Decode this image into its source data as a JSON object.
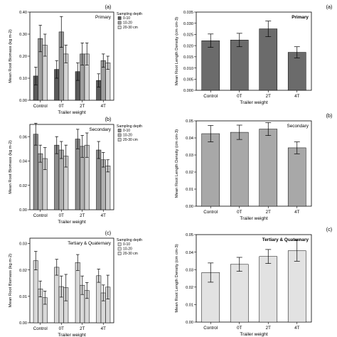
{
  "chart_data": [
    {
      "type": "bar",
      "panel_label": "(a)",
      "title": "Primary",
      "xlabel": "Trailer weight",
      "ylabel": "Mean Root Biomass (kg m-2)",
      "categories": [
        "Control",
        "0T",
        "2T",
        "4T"
      ],
      "ylim": [
        0,
        0.4
      ],
      "yticks": [
        "0.00",
        "0.10",
        "0.20",
        "0.30",
        "0.40"
      ],
      "ytick_values": [
        0,
        0.1,
        0.2,
        0.3,
        0.4
      ],
      "legend": {
        "title": "Sampling depth",
        "entries": [
          "0-10",
          "10-20",
          "20-30 cm"
        ],
        "placement": "top-right"
      },
      "series": [
        {
          "name": "0-10",
          "color": "#5a5a5a",
          "values": [
            0.11,
            0.14,
            0.13,
            0.09
          ],
          "errors": [
            0.04,
            0.04,
            0.04,
            0.03
          ]
        },
        {
          "name": "10-20",
          "color": "#9e9e9e",
          "values": [
            0.28,
            0.31,
            0.21,
            0.18
          ],
          "errors": [
            0.06,
            0.07,
            0.05,
            0.03
          ]
        },
        {
          "name": "20-30 cm",
          "color": "#d4d4d4",
          "values": [
            0.25,
            0.21,
            0.21,
            0.17
          ],
          "errors": [
            0.05,
            0.04,
            0.05,
            0.03
          ]
        }
      ]
    },
    {
      "type": "bar",
      "panel_label": "(b)",
      "title": "Secondary",
      "xlabel": "Trailer weight",
      "ylabel": "Mean Root Biomass (kg m-2)",
      "categories": [
        "Control",
        "0T",
        "2T",
        "4T"
      ],
      "ylim": [
        0,
        0.07
      ],
      "yticks": [
        "0.00",
        "0.02",
        "0.04",
        "0.06"
      ],
      "ytick_values": [
        0,
        0.02,
        0.04,
        0.06
      ],
      "legend": {
        "title": "Sampling depth",
        "entries": [
          "0-10",
          "10-20",
          "20-30 cm"
        ],
        "placement": "top-right"
      },
      "series": [
        {
          "name": "0-10",
          "color": "#8c8c8c",
          "values": [
            0.062,
            0.053,
            0.058,
            0.049
          ],
          "errors": [
            0.009,
            0.007,
            0.008,
            0.007
          ]
        },
        {
          "name": "10-20",
          "color": "#b0b0b0",
          "values": [
            0.046,
            0.049,
            0.052,
            0.041
          ],
          "errors": [
            0.007,
            0.007,
            0.009,
            0.006
          ]
        },
        {
          "name": "20-30 cm",
          "color": "#cfcfcf",
          "values": [
            0.042,
            0.044,
            0.053,
            0.036
          ],
          "errors": [
            0.009,
            0.009,
            0.01,
            0.005
          ]
        }
      ]
    },
    {
      "type": "bar",
      "panel_label": "(c)",
      "title": "Tertiary & Quaternary",
      "xlabel": "Trailer weight",
      "ylabel": "Mean Root Biomass (kg m-2)",
      "categories": [
        "Control",
        "0T",
        "2T",
        "4T"
      ],
      "ylim": [
        0,
        0.032
      ],
      "yticks": [
        "0.00",
        "0.01",
        "0.02",
        "0.03"
      ],
      "ytick_values": [
        0,
        0.01,
        0.02,
        0.03
      ],
      "legend": {
        "title": "Sampling depth",
        "entries": [
          "0-10",
          "10-20",
          "20-30 cm"
        ],
        "placement": "top-right"
      },
      "series": [
        {
          "name": "0-10",
          "color": "#d8d8d8",
          "values": [
            0.0235,
            0.021,
            0.0228,
            0.0178
          ],
          "errors": [
            0.0035,
            0.003,
            0.003,
            0.0025
          ]
        },
        {
          "name": "10-20",
          "color": "#d8d8d8",
          "values": [
            0.0128,
            0.0137,
            0.0142,
            0.0113
          ],
          "errors": [
            0.003,
            0.004,
            0.0035,
            0.003
          ]
        },
        {
          "name": "20-30 cm",
          "color": "#d8d8d8",
          "values": [
            0.0095,
            0.0133,
            0.0122,
            0.0135
          ],
          "errors": [
            0.0025,
            0.005,
            0.003,
            0.0045
          ]
        }
      ]
    },
    {
      "type": "bar",
      "panel_label": "(a)",
      "title": "Primary",
      "xlabel": "Trailer weight",
      "ylabel": "Mean Root Length Density (cm cm-3)",
      "categories": [
        "Control",
        "0T",
        "2T",
        "4T"
      ],
      "ylim": [
        0,
        0.035
      ],
      "yticks": [
        "0.000",
        "0.005",
        "0.010",
        "0.015",
        "0.020",
        "0.025",
        "0.030",
        "0.035"
      ],
      "ytick_values": [
        0,
        0.005,
        0.01,
        0.015,
        0.02,
        0.025,
        0.03,
        0.035
      ],
      "series": [
        {
          "color": "#6b6b6b",
          "values": [
            0.0222,
            0.0225,
            0.0275,
            0.017
          ],
          "errors": [
            0.003,
            0.003,
            0.0035,
            0.0025
          ]
        }
      ]
    },
    {
      "type": "bar",
      "panel_label": "(b)",
      "title": "Secondary",
      "xlabel": "Trailer weight",
      "ylabel": "Mean Root Length Density (cm cm-3)",
      "categories": [
        "Control",
        "0T",
        "2T",
        "4T"
      ],
      "ylim": [
        0,
        0.05
      ],
      "yticks": [
        "0.00",
        "0.01",
        "0.02",
        "0.03",
        "0.04",
        "0.05"
      ],
      "ytick_values": [
        0,
        0.01,
        0.02,
        0.03,
        0.04,
        0.05
      ],
      "series": [
        {
          "color": "#a8a8a8",
          "values": [
            0.0425,
            0.0433,
            0.0452,
            0.0342
          ],
          "errors": [
            0.0048,
            0.0042,
            0.0038,
            0.0035
          ]
        }
      ]
    },
    {
      "type": "bar",
      "panel_label": "(c)",
      "title": "Tertiary & Quaternary",
      "xlabel": "Trailer weight",
      "ylabel": "Mean Root Length Density (cm cm-3)",
      "categories": [
        "Control",
        "0T",
        "2T",
        "4T"
      ],
      "ylim": [
        0,
        0.05
      ],
      "yticks": [
        "0.00",
        "0.01",
        "0.02",
        "0.03",
        "0.04",
        "0.05"
      ],
      "ytick_values": [
        0,
        0.01,
        0.02,
        0.03,
        0.04,
        0.05
      ],
      "series": [
        {
          "color": "#e2e2e2",
          "values": [
            0.0283,
            0.033,
            0.0375,
            0.0408
          ],
          "errors": [
            0.0055,
            0.004,
            0.004,
            0.006
          ]
        }
      ]
    }
  ]
}
